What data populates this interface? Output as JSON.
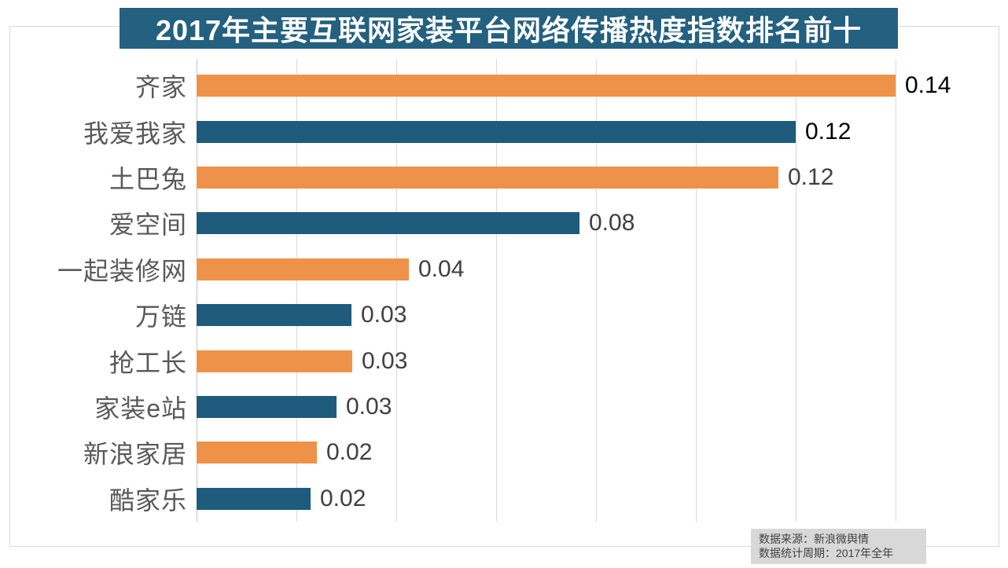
{
  "title": "2017年主要互联网家装平台网络传播热度指数排名前十",
  "source_note": {
    "line1": "数据来源：新浪微舆情",
    "line2": "数据统计周期：2017年全年"
  },
  "colors": {
    "orange": "#EF9249",
    "blue": "#1E5B7C",
    "banner_bg": "#24607F",
    "title_text": "#FFFFFF",
    "category_label": "#595959",
    "value_black": "#000000",
    "value_gray": "#404040",
    "gridline": "#D9D9D9",
    "note_bg": "#D8D8D8"
  },
  "chart_data": {
    "type": "bar",
    "orientation": "horizontal",
    "title": "2017年主要互联网家装平台网络传播热度指数排名前十",
    "xlabel": "",
    "ylabel": "",
    "categories": [
      "齐家",
      "我爱我家",
      "土巴兔",
      "爱空间",
      "一起装修网",
      "万链",
      "抢工长",
      "家装e站",
      "新浪家居",
      "酷家乐"
    ],
    "values": [
      0.14,
      0.12,
      0.12,
      0.08,
      0.04,
      0.03,
      0.03,
      0.03,
      0.02,
      0.02
    ],
    "value_labels": [
      "0.14",
      "0.12",
      "0.12",
      "0.08",
      "0.04",
      "0.03",
      "0.03",
      "0.03",
      "0.02",
      "0.02"
    ],
    "values_precise_estimated": [
      0.14,
      0.12,
      0.1165,
      0.0767,
      0.0425,
      0.031,
      0.0312,
      0.028,
      0.0241,
      0.0228
    ],
    "bar_colors": [
      "orange",
      "blue",
      "orange",
      "blue",
      "orange",
      "blue",
      "orange",
      "blue",
      "orange",
      "blue"
    ],
    "value_label_colors": [
      "value_black",
      "value_black",
      "value_gray",
      "value_gray",
      "value_gray",
      "value_gray",
      "value_gray",
      "value_gray",
      "value_gray",
      "value_gray"
    ],
    "xlim": [
      0,
      0.14
    ],
    "grid": true,
    "grid_interval": 0.02,
    "legend": false,
    "axis_tick_labels_visible": false
  }
}
